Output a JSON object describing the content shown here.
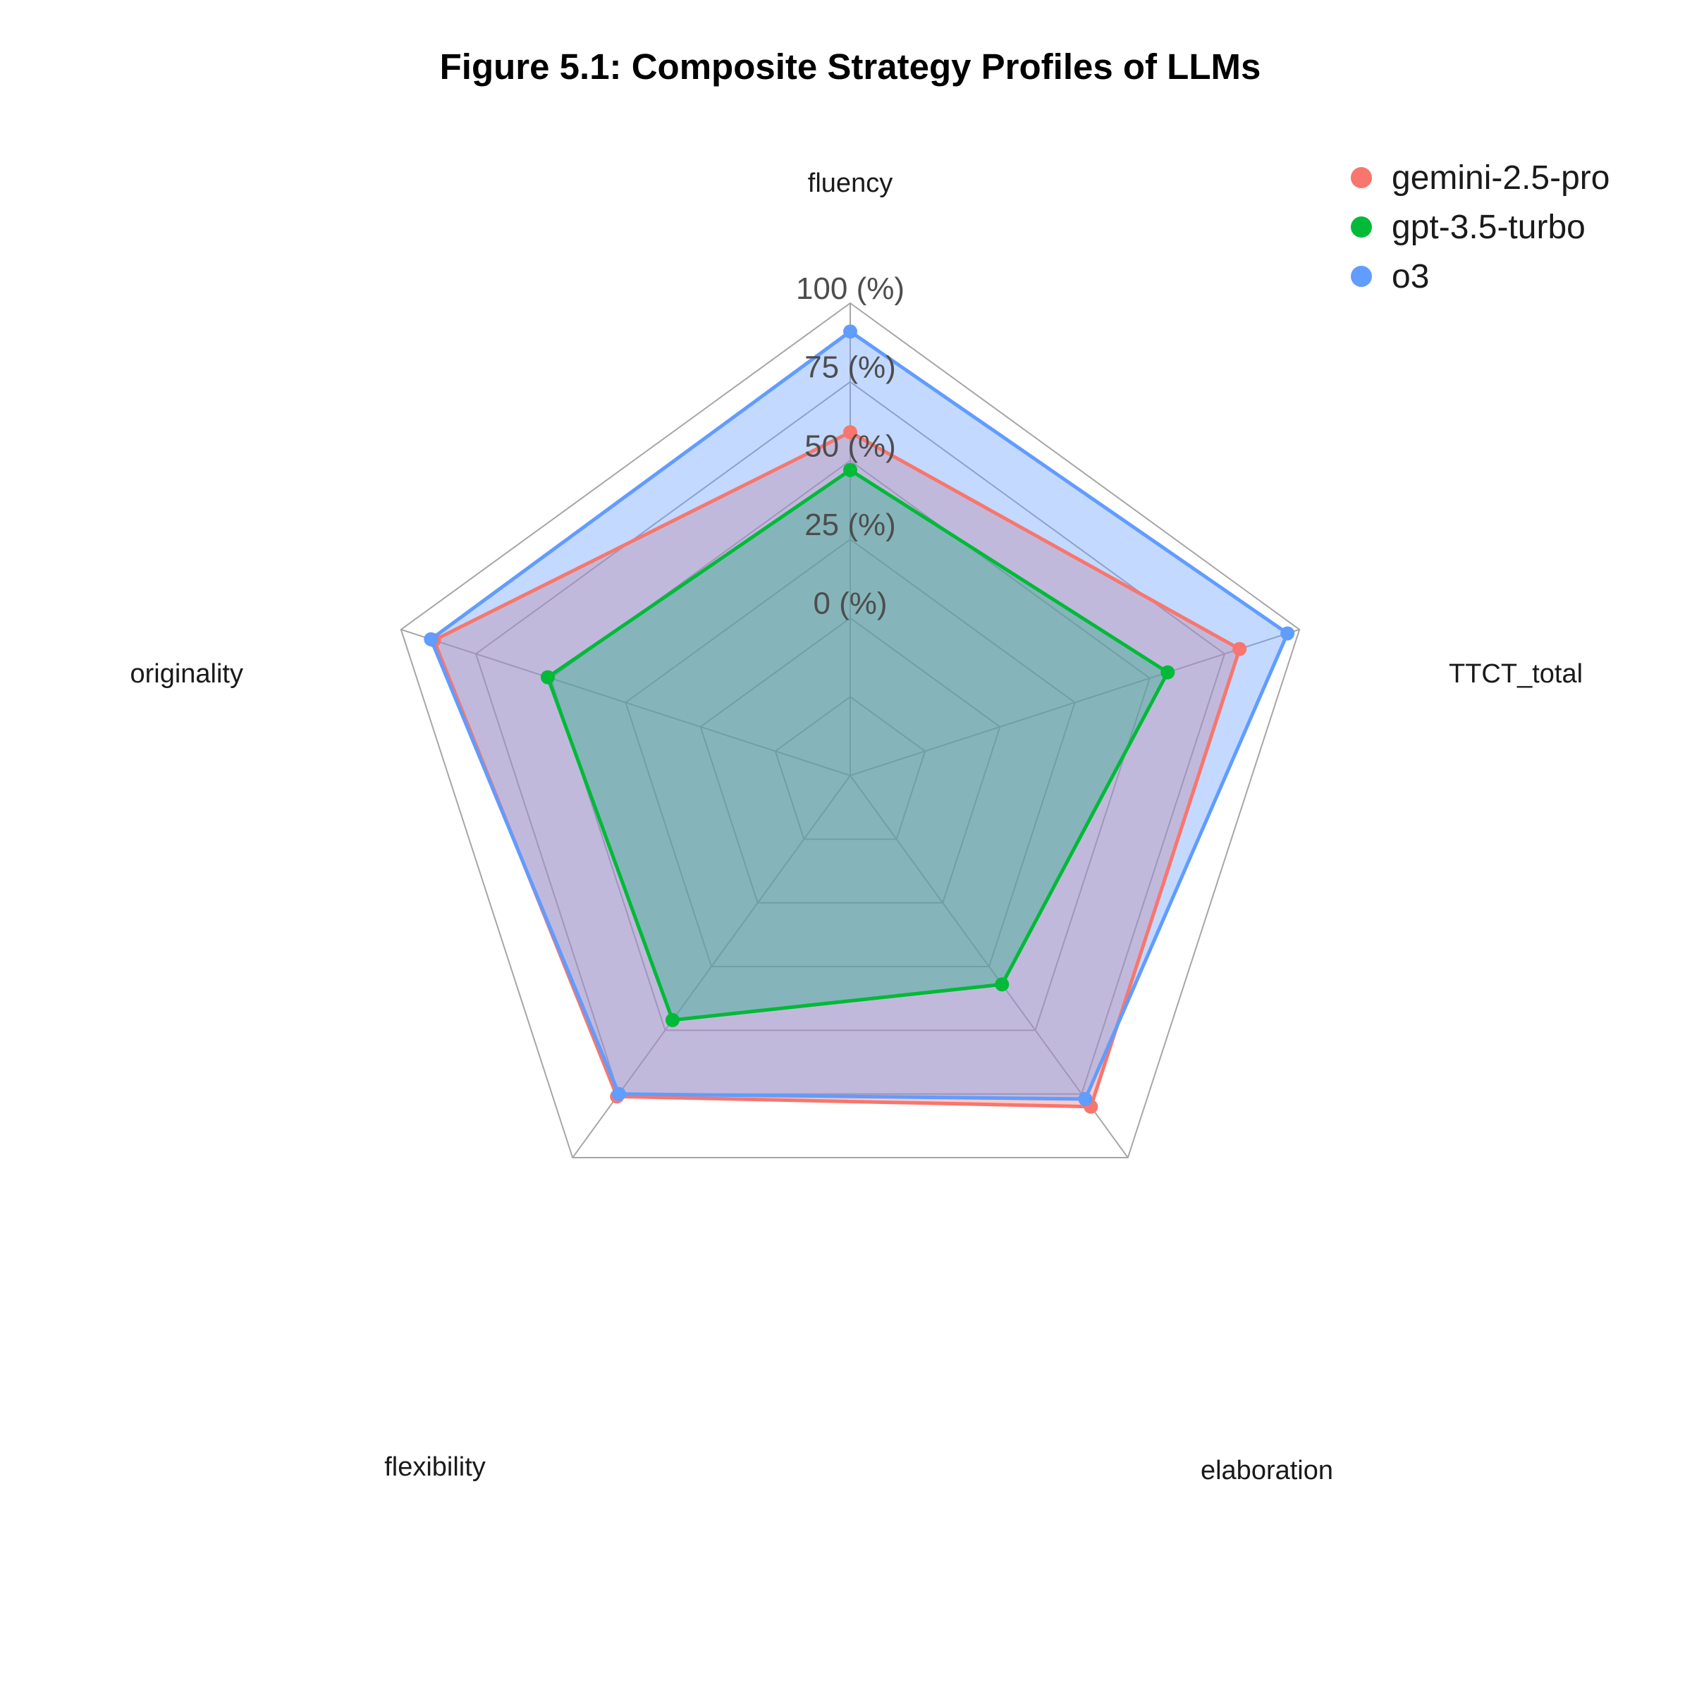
{
  "chart_data": {
    "type": "radar",
    "title": "Figure 5.1: Composite Strategy Profiles of LLMs",
    "axes": [
      "fluency",
      "TTCT_total",
      "elaboration",
      "flexibility",
      "originality"
    ],
    "tick_labels": [
      "0 (%)",
      "25 (%)",
      "50 (%)",
      "75 (%)",
      "100 (%)"
    ],
    "tick_values": [
      0,
      25,
      50,
      75,
      100
    ],
    "range": [
      -50,
      100
    ],
    "grid": true,
    "legend_position": "top-right",
    "series": [
      {
        "name": "gemini-2.5-pro",
        "color": "#F8766D",
        "values": [
          59,
          80,
          80,
          76,
          89
        ]
      },
      {
        "name": "gpt-3.5-turbo",
        "color": "#00BA38",
        "values": [
          47,
          56,
          32,
          46,
          51
        ]
      },
      {
        "name": "o3",
        "color": "#619CFF",
        "values": [
          91,
          96,
          77,
          75,
          90
        ]
      }
    ]
  }
}
